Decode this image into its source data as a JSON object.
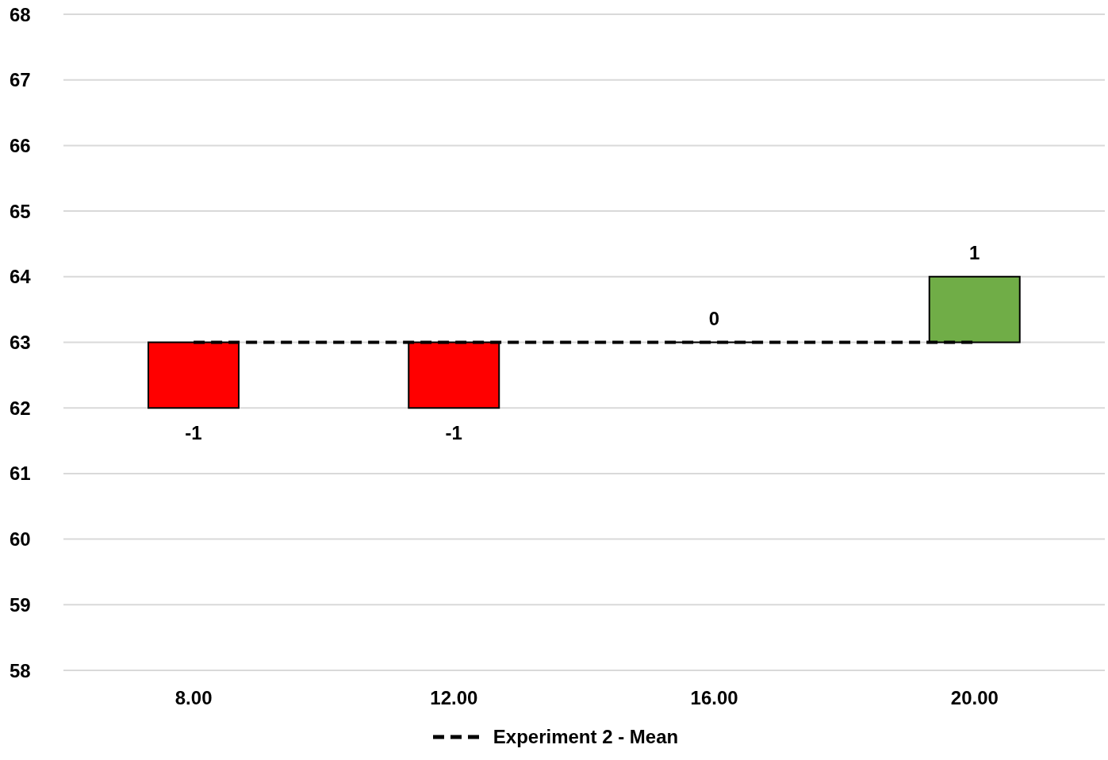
{
  "chart_data": {
    "type": "bar",
    "categories": [
      "8.00",
      "12.00",
      "16.00",
      "20.00"
    ],
    "series": [
      {
        "base": [
          63,
          63,
          63,
          63
        ],
        "values": [
          -1,
          -1,
          0,
          1
        ],
        "value_labels": [
          "-1",
          "-1",
          "0",
          "1"
        ],
        "colors": [
          "#ff0000",
          "#ff0000",
          "#000000",
          "#70ad47"
        ]
      },
      {
        "type": "line",
        "name": "Experiment 2 - Mean",
        "color": "#000000",
        "line_style": "dashed",
        "marker": "none",
        "values": [
          63,
          63,
          63,
          63
        ]
      }
    ],
    "ylim": [
      58,
      68
    ],
    "yticks": [
      58,
      59,
      60,
      61,
      62,
      63,
      64,
      65,
      66,
      67,
      68
    ],
    "grid": "y",
    "legend": "bottom"
  }
}
